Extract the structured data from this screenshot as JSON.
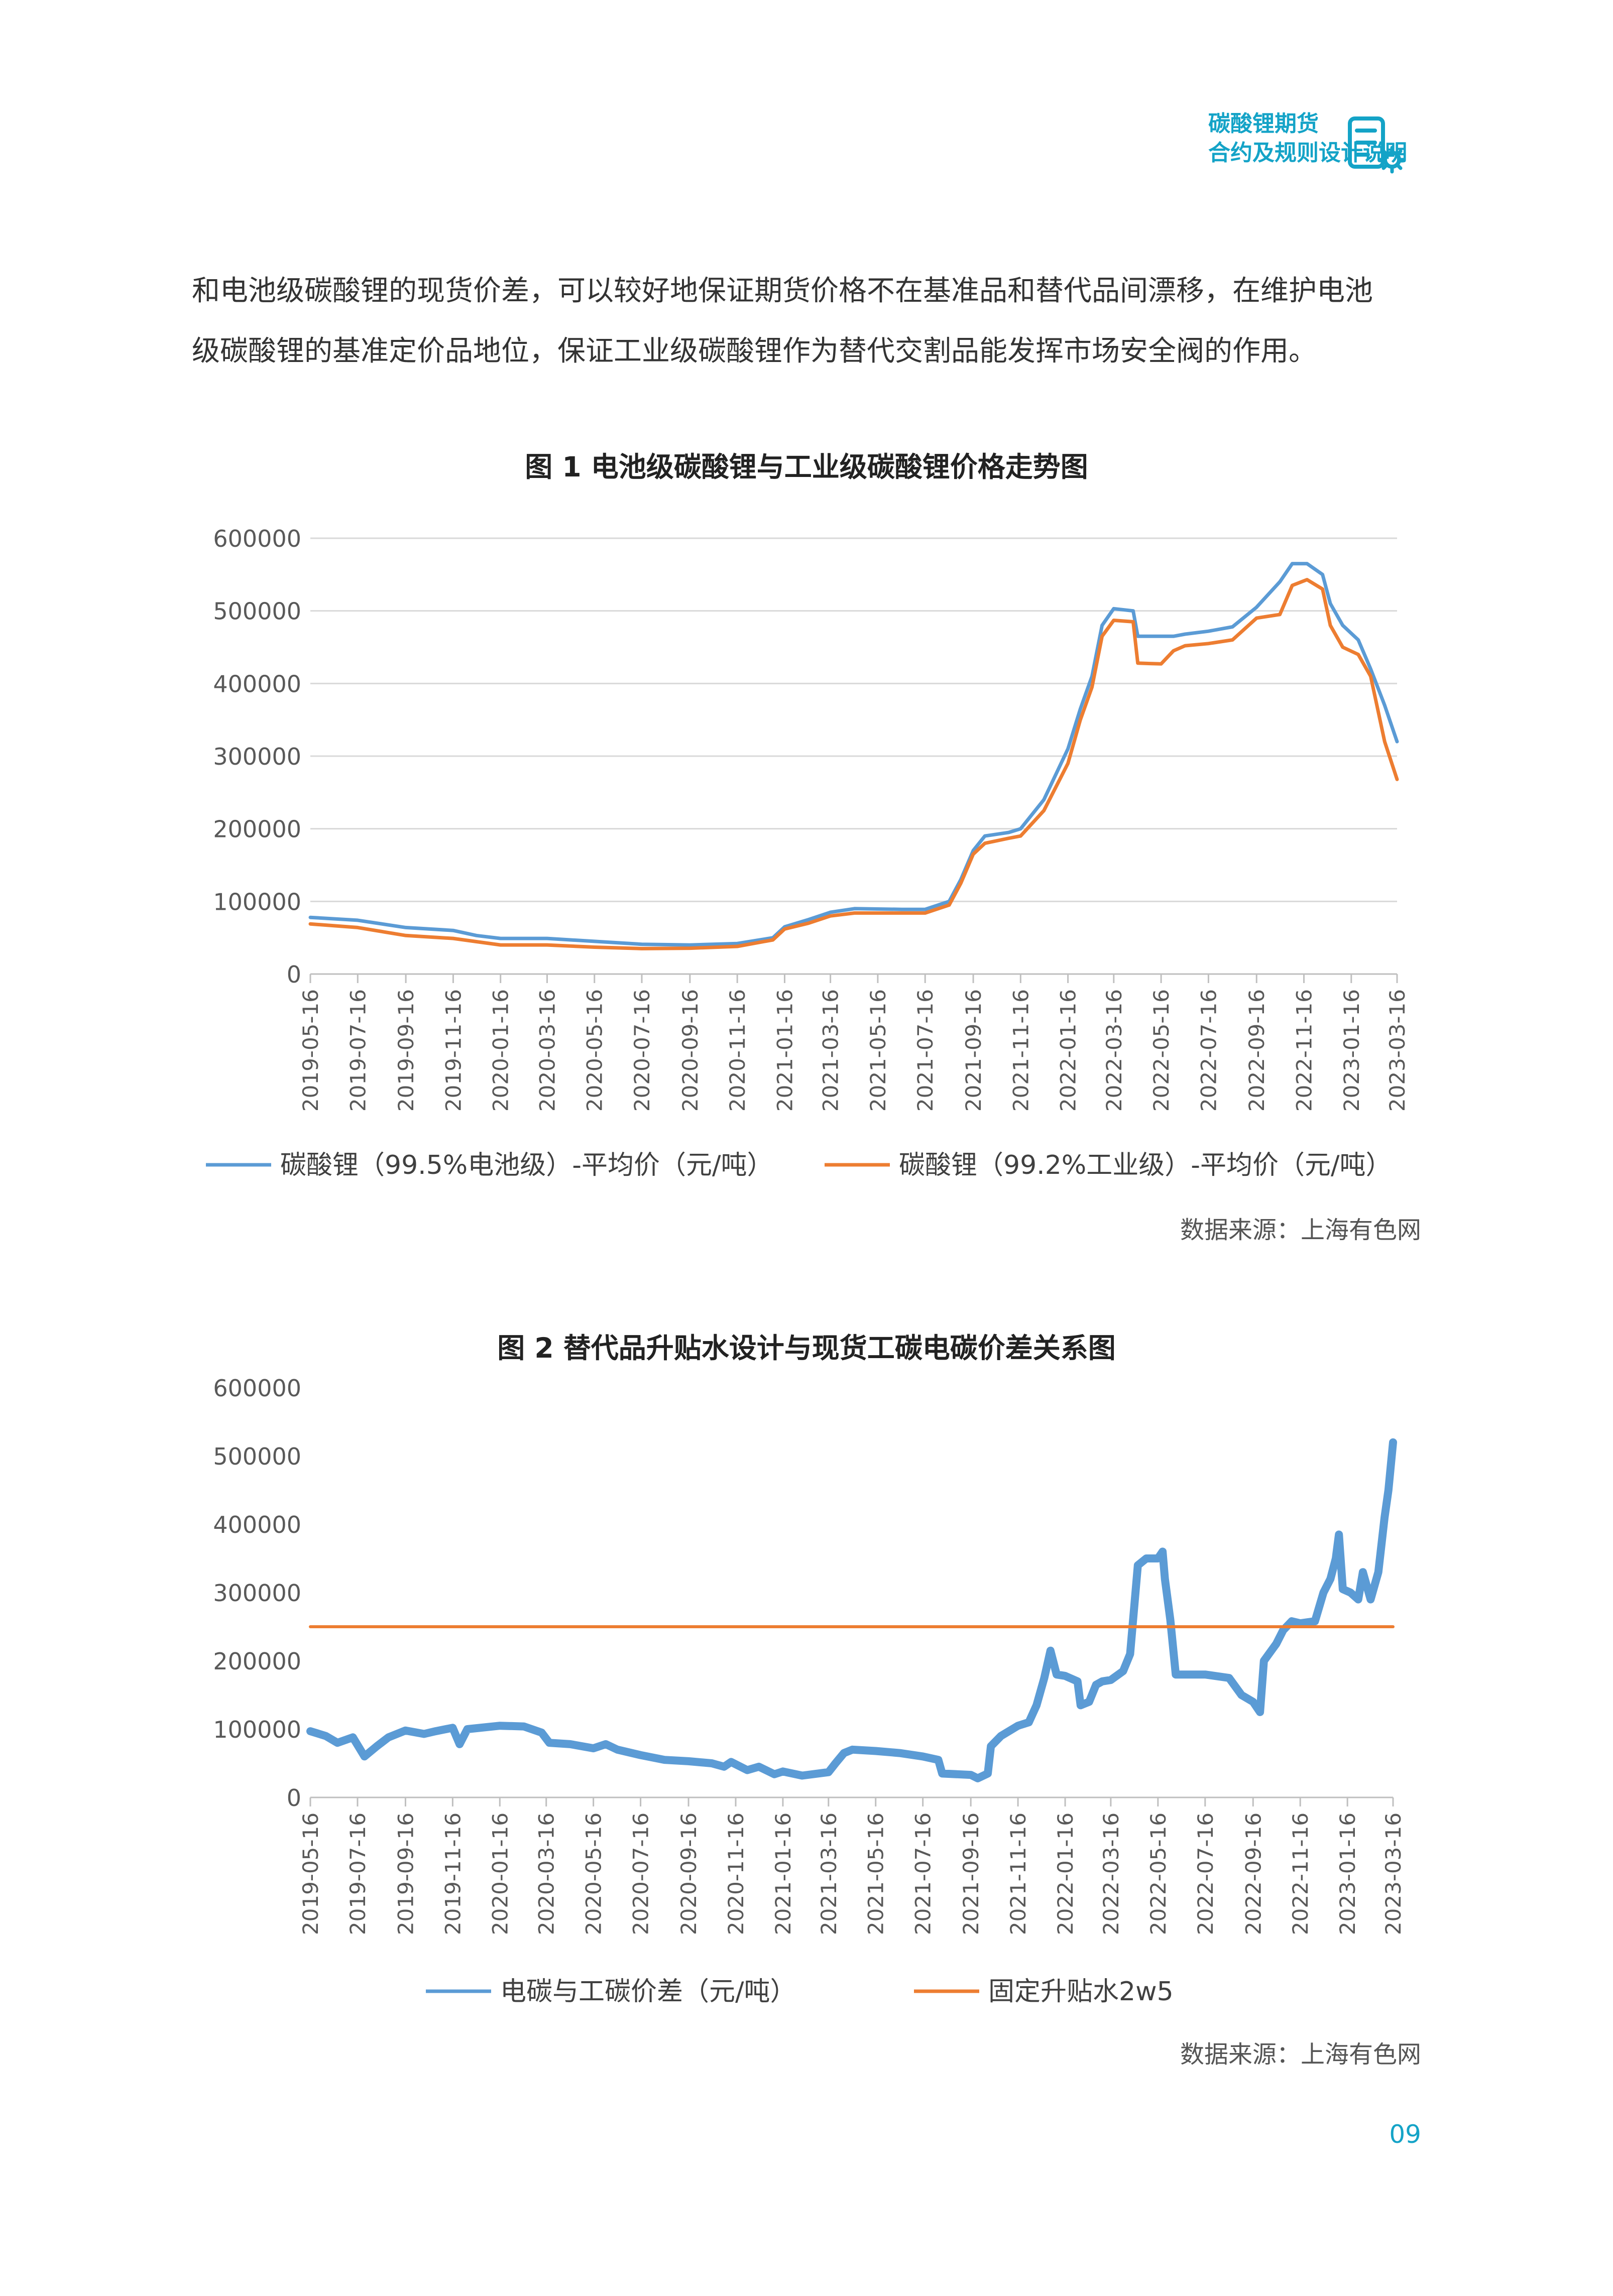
{
  "header": {
    "line1": "碳酸锂期货",
    "line2": "合约及规则设计说明",
    "accent": "#14A3C7",
    "icon": "document-gear-icon"
  },
  "paragraph": {
    "line1": "和电池级碳酸锂的现货价差，可以较好地保证期货价格不在基准品和替代品间漂移，在维护电池",
    "line2": "级碳酸锂的基准定价品地位，保证工业级碳酸锂作为替代交割品能发挥市场安全阀的作用。"
  },
  "figure1": {
    "title": "图 1 电池级碳酸锂与工业级碳酸锂价格走势图",
    "source": "数据来源：上海有色网"
  },
  "figure2": {
    "title": "图 2 替代品升贴水设计与现货工碳电碳价差关系图",
    "source": "数据来源：上海有色网"
  },
  "page_number": "09",
  "chart_data": [
    {
      "type": "line",
      "ylim": [
        0,
        600000
      ],
      "yticks": [
        "600000",
        "500000",
        "400000",
        "300000",
        "200000",
        "100000",
        "0"
      ],
      "x_range": [
        "2019-05-16",
        "2023-03-16"
      ],
      "x_tick_labels": [
        "2019-05-16",
        "2019-07-16",
        "2019-09-16",
        "2019-11-16",
        "2020-01-16",
        "2020-03-16",
        "2020-05-16",
        "2020-07-16",
        "2020-09-16",
        "2020-11-16",
        "2021-01-16",
        "2021-03-16",
        "2021-05-16",
        "2021-07-16",
        "2021-09-16",
        "2021-11-16",
        "2022-01-16",
        "2022-03-16",
        "2022-05-16",
        "2022-07-16",
        "2022-09-16",
        "2022-11-16",
        "2023-01-16",
        "2023-03-16"
      ],
      "grid": true,
      "legend_position": "bottom",
      "series": [
        {
          "name": "碳酸锂（99.5%电池级）-平均价（元/吨）",
          "color": "#5B9BD5",
          "points": [
            [
              "2019-05-16",
              78000
            ],
            [
              "2019-07-16",
              74000
            ],
            [
              "2019-09-16",
              64000
            ],
            [
              "2019-11-16",
              60000
            ],
            [
              "2019-12-16",
              53000
            ],
            [
              "2020-01-16",
              49000
            ],
            [
              "2020-03-16",
              49000
            ],
            [
              "2020-05-16",
              45000
            ],
            [
              "2020-07-16",
              41000
            ],
            [
              "2020-09-16",
              40000
            ],
            [
              "2020-11-16",
              42000
            ],
            [
              "2021-01-01",
              50000
            ],
            [
              "2021-01-16",
              65000
            ],
            [
              "2021-02-16",
              75000
            ],
            [
              "2021-03-16",
              85000
            ],
            [
              "2021-04-16",
              90000
            ],
            [
              "2021-06-16",
              89000
            ],
            [
              "2021-07-16",
              89000
            ],
            [
              "2021-08-16",
              100000
            ],
            [
              "2021-08-31",
              130000
            ],
            [
              "2021-09-16",
              170000
            ],
            [
              "2021-10-01",
              190000
            ],
            [
              "2021-11-01",
              195000
            ],
            [
              "2021-11-16",
              200000
            ],
            [
              "2021-12-16",
              240000
            ],
            [
              "2022-01-16",
              310000
            ],
            [
              "2022-02-01",
              365000
            ],
            [
              "2022-02-16",
              410000
            ],
            [
              "2022-03-01",
              480000
            ],
            [
              "2022-03-16",
              503000
            ],
            [
              "2022-04-10",
              500000
            ],
            [
              "2022-04-16",
              465000
            ],
            [
              "2022-06-01",
              465000
            ],
            [
              "2022-06-16",
              468000
            ],
            [
              "2022-07-16",
              472000
            ],
            [
              "2022-08-16",
              478000
            ],
            [
              "2022-09-16",
              505000
            ],
            [
              "2022-10-16",
              540000
            ],
            [
              "2022-11-01",
              565000
            ],
            [
              "2022-11-20",
              565000
            ],
            [
              "2022-12-10",
              550000
            ],
            [
              "2022-12-20",
              510000
            ],
            [
              "2023-01-05",
              480000
            ],
            [
              "2023-01-25",
              460000
            ],
            [
              "2023-02-10",
              420000
            ],
            [
              "2023-02-28",
              370000
            ],
            [
              "2023-03-16",
              320000
            ]
          ]
        },
        {
          "name": "碳酸锂（99.2%工业级）-平均价（元/吨）",
          "color": "#ED7D31",
          "points": [
            [
              "2019-05-16",
              69000
            ],
            [
              "2019-07-16",
              64000
            ],
            [
              "2019-09-16",
              53000
            ],
            [
              "2019-11-16",
              49000
            ],
            [
              "2020-01-16",
              40000
            ],
            [
              "2020-03-16",
              40000
            ],
            [
              "2020-05-16",
              37000
            ],
            [
              "2020-07-16",
              35000
            ],
            [
              "2020-09-16",
              35500
            ],
            [
              "2020-11-16",
              38000
            ],
            [
              "2021-01-01",
              47000
            ],
            [
              "2021-01-16",
              62000
            ],
            [
              "2021-02-16",
              70000
            ],
            [
              "2021-03-16",
              80000
            ],
            [
              "2021-04-16",
              84000
            ],
            [
              "2021-06-16",
              84000
            ],
            [
              "2021-07-16",
              84000
            ],
            [
              "2021-08-16",
              95000
            ],
            [
              "2021-08-31",
              125000
            ],
            [
              "2021-09-16",
              165000
            ],
            [
              "2021-10-01",
              180000
            ],
            [
              "2021-11-01",
              187000
            ],
            [
              "2021-11-16",
              190000
            ],
            [
              "2021-12-16",
              225000
            ],
            [
              "2022-01-16",
              290000
            ],
            [
              "2022-02-01",
              350000
            ],
            [
              "2022-02-16",
              395000
            ],
            [
              "2022-03-01",
              465000
            ],
            [
              "2022-03-16",
              487000
            ],
            [
              "2022-04-10",
              485000
            ],
            [
              "2022-04-16",
              428000
            ],
            [
              "2022-05-16",
              427000
            ],
            [
              "2022-06-01",
              445000
            ],
            [
              "2022-06-16",
              452000
            ],
            [
              "2022-07-16",
              455000
            ],
            [
              "2022-08-16",
              460000
            ],
            [
              "2022-09-16",
              490000
            ],
            [
              "2022-10-16",
              495000
            ],
            [
              "2022-11-01",
              535000
            ],
            [
              "2022-11-20",
              543000
            ],
            [
              "2022-12-10",
              530000
            ],
            [
              "2022-12-20",
              480000
            ],
            [
              "2023-01-05",
              450000
            ],
            [
              "2023-01-25",
              440000
            ],
            [
              "2023-02-10",
              410000
            ],
            [
              "2023-02-28",
              320000
            ],
            [
              "2023-03-16",
              268000
            ]
          ]
        }
      ]
    },
    {
      "type": "line",
      "ylim": [
        0,
        600000
      ],
      "yticks": [
        "600000",
        "500000",
        "400000",
        "300000",
        "200000",
        "100000",
        "0"
      ],
      "x_range": [
        "2019-05-16",
        "2023-03-16"
      ],
      "x_tick_labels": [
        "2019-05-16",
        "2019-07-16",
        "2019-09-16",
        "2019-11-16",
        "2020-01-16",
        "2020-03-16",
        "2020-05-16",
        "2020-07-16",
        "2020-09-16",
        "2020-11-16",
        "2021-01-16",
        "2021-03-16",
        "2021-05-16",
        "2021-07-16",
        "2021-09-16",
        "2021-11-16",
        "2022-01-16",
        "2022-03-16",
        "2022-05-16",
        "2022-07-16",
        "2022-09-16",
        "2022-11-16",
        "2023-01-16",
        "2023-03-16"
      ],
      "grid": false,
      "legend_position": "bottom",
      "series": [
        {
          "name": "电碳与工碳价差（元/吨）",
          "color": "#5B9BD5",
          "points": [
            [
              "2019-05-16",
              97000
            ],
            [
              "2019-06-05",
              90000
            ],
            [
              "2019-06-20",
              80000
            ],
            [
              "2019-07-10",
              88000
            ],
            [
              "2019-07-25",
              60000
            ],
            [
              "2019-08-10",
              75000
            ],
            [
              "2019-08-25",
              88000
            ],
            [
              "2019-09-16",
              98000
            ],
            [
              "2019-10-10",
              93000
            ],
            [
              "2019-10-25",
              97000
            ],
            [
              "2019-11-16",
              102000
            ],
            [
              "2019-11-25",
              78000
            ],
            [
              "2019-12-05",
              100000
            ],
            [
              "2020-01-16",
              105000
            ],
            [
              "2020-02-16",
              104000
            ],
            [
              "2020-03-10",
              95000
            ],
            [
              "2020-03-20",
              80000
            ],
            [
              "2020-04-16",
              78000
            ],
            [
              "2020-05-16",
              72000
            ],
            [
              "2020-06-01",
              78000
            ],
            [
              "2020-06-16",
              70000
            ],
            [
              "2020-07-16",
              62000
            ],
            [
              "2020-08-16",
              55000
            ],
            [
              "2020-09-16",
              53000
            ],
            [
              "2020-10-16",
              50000
            ],
            [
              "2020-11-01",
              45000
            ],
            [
              "2020-11-10",
              52000
            ],
            [
              "2020-12-01",
              40000
            ],
            [
              "2020-12-16",
              45000
            ],
            [
              "2021-01-05",
              34000
            ],
            [
              "2021-01-16",
              38000
            ],
            [
              "2021-02-10",
              32000
            ],
            [
              "2021-03-16",
              37000
            ],
            [
              "2021-03-25",
              50000
            ],
            [
              "2021-04-05",
              65000
            ],
            [
              "2021-04-16",
              70000
            ],
            [
              "2021-05-16",
              68000
            ],
            [
              "2021-06-16",
              65000
            ],
            [
              "2021-07-16",
              60000
            ],
            [
              "2021-08-05",
              55000
            ],
            [
              "2021-08-10",
              35000
            ],
            [
              "2021-09-16",
              33000
            ],
            [
              "2021-09-25",
              28000
            ],
            [
              "2021-10-08",
              35000
            ],
            [
              "2021-10-12",
              75000
            ],
            [
              "2021-10-25",
              90000
            ],
            [
              "2021-11-16",
              105000
            ],
            [
              "2021-11-30",
              110000
            ],
            [
              "2021-12-10",
              135000
            ],
            [
              "2021-12-20",
              175000
            ],
            [
              "2021-12-28",
              215000
            ],
            [
              "2022-01-05",
              180000
            ],
            [
              "2022-01-16",
              178000
            ],
            [
              "2022-02-01",
              170000
            ],
            [
              "2022-02-05",
              135000
            ],
            [
              "2022-02-16",
              140000
            ],
            [
              "2022-02-25",
              165000
            ],
            [
              "2022-03-05",
              170000
            ],
            [
              "2022-03-16",
              172000
            ],
            [
              "2022-04-01",
              185000
            ],
            [
              "2022-04-10",
              210000
            ],
            [
              "2022-04-20",
              340000
            ],
            [
              "2022-05-01",
              350000
            ],
            [
              "2022-05-16",
              350000
            ],
            [
              "2022-05-22",
              360000
            ],
            [
              "2022-05-25",
              320000
            ],
            [
              "2022-06-01",
              260000
            ],
            [
              "2022-06-08",
              180000
            ],
            [
              "2022-06-16",
              180000
            ],
            [
              "2022-07-16",
              180000
            ],
            [
              "2022-08-16",
              175000
            ],
            [
              "2022-09-01",
              150000
            ],
            [
              "2022-09-16",
              140000
            ],
            [
              "2022-09-25",
              125000
            ],
            [
              "2022-09-30",
              200000
            ],
            [
              "2022-10-16",
              225000
            ],
            [
              "2022-10-25",
              245000
            ],
            [
              "2022-11-05",
              258000
            ],
            [
              "2022-11-16",
              255000
            ],
            [
              "2022-12-05",
              258000
            ],
            [
              "2022-12-16",
              300000
            ],
            [
              "2022-12-25",
              320000
            ],
            [
              "2023-01-01",
              350000
            ],
            [
              "2023-01-05",
              385000
            ],
            [
              "2023-01-10",
              305000
            ],
            [
              "2023-01-20",
              300000
            ],
            [
              "2023-01-30",
              290000
            ],
            [
              "2023-02-05",
              330000
            ],
            [
              "2023-02-15",
              290000
            ],
            [
              "2023-02-25",
              330000
            ],
            [
              "2023-03-05",
              410000
            ],
            [
              "2023-03-10",
              450000
            ],
            [
              "2023-03-16",
              520000
            ]
          ]
        },
        {
          "name": "固定升贴水2w5",
          "color": "#ED7D31",
          "points": [
            [
              "2019-05-16",
              250000
            ],
            [
              "2023-03-16",
              250000
            ]
          ]
        }
      ]
    }
  ]
}
